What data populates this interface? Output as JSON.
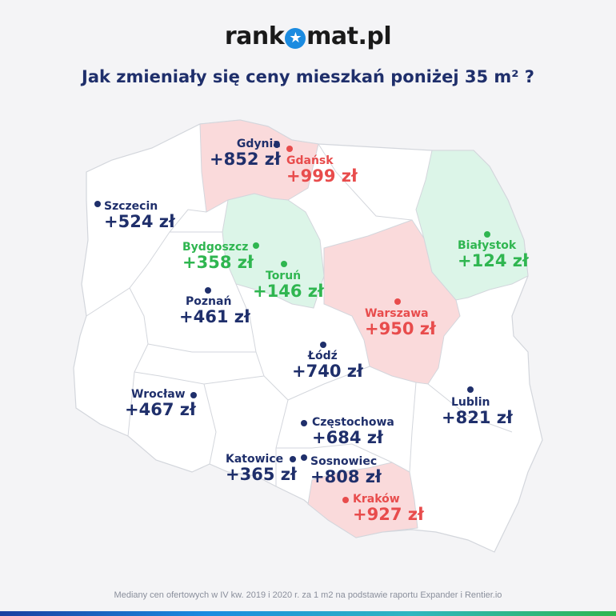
{
  "brand": {
    "name_left": "rank",
    "name_right": "mat.pl",
    "logo_glyph": "★"
  },
  "headline": "Jak zmieniały się ceny mieszkań poniżej 35 m² ?",
  "footnote": "Mediany cen ofertowych w IV kw. 2019 i 2020 r. za 1 m2 na podstawie raportu Expander i Rentier.io",
  "colors": {
    "navy": "#1f2f6b",
    "red": "#e84c4c",
    "green": "#2fb650",
    "pink_region": "#fadadb",
    "mint_region": "#dcf5e8"
  },
  "cities": [
    {
      "id": "gdynia",
      "name": "Gdynia",
      "price": "+852 zł",
      "group": "navy"
    },
    {
      "id": "gdansk",
      "name": "Gdańsk",
      "price": "+999 zł",
      "group": "red"
    },
    {
      "id": "szczecin",
      "name": "Szczecin",
      "price": "+524 zł",
      "group": "navy"
    },
    {
      "id": "bydgoszcz",
      "name": "Bydgoszcz",
      "price": "+358 zł",
      "group": "green"
    },
    {
      "id": "torun",
      "name": "Toruń",
      "price": "+146 zł",
      "group": "green"
    },
    {
      "id": "bialystok",
      "name": "Białystok",
      "price": "+124 zł",
      "group": "green"
    },
    {
      "id": "poznan",
      "name": "Poznań",
      "price": "+461 zł",
      "group": "navy"
    },
    {
      "id": "warszawa",
      "name": "Warszawa",
      "price": "+950 zł",
      "group": "red"
    },
    {
      "id": "lodz",
      "name": "Łódź",
      "price": "+740 zł",
      "group": "navy"
    },
    {
      "id": "wroclaw",
      "name": "Wrocław",
      "price": "+467 zł",
      "group": "navy"
    },
    {
      "id": "lublin",
      "name": "Lublin",
      "price": "+821 zł",
      "group": "navy"
    },
    {
      "id": "czestochowa",
      "name": "Częstochowa",
      "price": "+684 zł",
      "group": "navy"
    },
    {
      "id": "katowice",
      "name": "Katowice",
      "price": "+365 zł",
      "group": "navy"
    },
    {
      "id": "sosnowiec",
      "name": "Sosnowiec",
      "price": "+808 zł",
      "group": "navy"
    },
    {
      "id": "krakow",
      "name": "Kraków",
      "price": "+927 zł",
      "group": "red"
    }
  ]
}
